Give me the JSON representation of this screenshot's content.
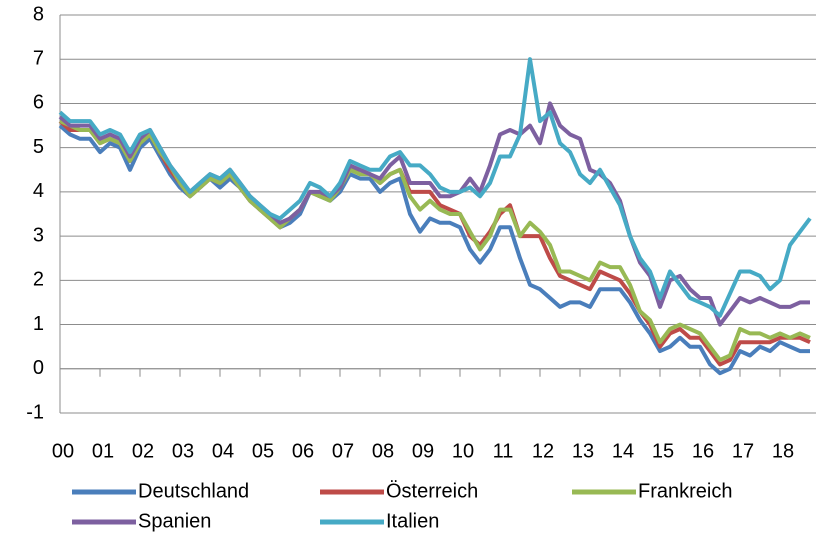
{
  "chart_data": {
    "type": "line",
    "x": [
      2000,
      2000.25,
      2000.5,
      2000.75,
      2001,
      2001.25,
      2001.5,
      2001.75,
      2002,
      2002.25,
      2002.5,
      2002.75,
      2003,
      2003.25,
      2003.5,
      2003.75,
      2004,
      2004.25,
      2004.5,
      2004.75,
      2005,
      2005.25,
      2005.5,
      2005.75,
      2006,
      2006.25,
      2006.5,
      2006.75,
      2007,
      2007.25,
      2007.5,
      2007.75,
      2008,
      2008.25,
      2008.5,
      2008.75,
      2009,
      2009.25,
      2009.5,
      2009.75,
      2010,
      2010.25,
      2010.5,
      2010.75,
      2011,
      2011.25,
      2011.5,
      2011.75,
      2012,
      2012.25,
      2012.5,
      2012.75,
      2013,
      2013.25,
      2013.5,
      2013.75,
      2014,
      2014.25,
      2014.5,
      2014.75,
      2015,
      2015.25,
      2015.5,
      2015.75,
      2016,
      2016.25,
      2016.5,
      2016.75,
      2017,
      2017.25,
      2017.5,
      2017.75,
      2018,
      2018.25,
      2018.5,
      2018.75
    ],
    "series": [
      {
        "name": "Deutschland",
        "color": "#4a7ebb",
        "values": [
          5.5,
          5.3,
          5.2,
          5.2,
          4.9,
          5.1,
          5.0,
          4.5,
          5.0,
          5.2,
          4.8,
          4.4,
          4.1,
          3.9,
          4.1,
          4.3,
          4.1,
          4.3,
          4.1,
          3.8,
          3.6,
          3.4,
          3.2,
          3.3,
          3.5,
          4.0,
          3.9,
          3.8,
          4.0,
          4.4,
          4.3,
          4.3,
          4.0,
          4.2,
          4.3,
          3.5,
          3.1,
          3.4,
          3.3,
          3.3,
          3.2,
          2.7,
          2.4,
          2.7,
          3.2,
          3.2,
          2.5,
          1.9,
          1.8,
          1.6,
          1.4,
          1.5,
          1.5,
          1.4,
          1.8,
          1.8,
          1.8,
          1.5,
          1.1,
          0.8,
          0.4,
          0.5,
          0.7,
          0.5,
          0.5,
          0.1,
          -0.1,
          0.0,
          0.4,
          0.3,
          0.5,
          0.4,
          0.6,
          0.5,
          0.4,
          0.4
        ]
      },
      {
        "name": "Österreich",
        "color": "#be4b48",
        "values": [
          5.6,
          5.4,
          5.4,
          5.4,
          5.1,
          5.2,
          5.1,
          4.7,
          5.1,
          5.3,
          4.9,
          4.5,
          4.2,
          3.9,
          4.1,
          4.3,
          4.2,
          4.4,
          4.1,
          3.8,
          3.6,
          3.4,
          3.2,
          3.4,
          3.6,
          4.0,
          3.9,
          3.9,
          4.1,
          4.5,
          4.5,
          4.4,
          4.2,
          4.4,
          4.5,
          4.0,
          4.0,
          4.0,
          3.7,
          3.6,
          3.5,
          3.0,
          2.8,
          3.1,
          3.5,
          3.7,
          3.0,
          3.0,
          3.0,
          2.5,
          2.1,
          2.0,
          1.9,
          1.8,
          2.2,
          2.1,
          2.0,
          1.7,
          1.3,
          1.0,
          0.5,
          0.8,
          0.9,
          0.7,
          0.7,
          0.4,
          0.1,
          0.2,
          0.6,
          0.6,
          0.6,
          0.6,
          0.7,
          0.7,
          0.7,
          0.6
        ]
      },
      {
        "name": "Frankreich",
        "color": "#98b954",
        "values": [
          5.6,
          5.5,
          5.4,
          5.4,
          5.1,
          5.2,
          5.1,
          4.7,
          5.1,
          5.3,
          4.9,
          4.6,
          4.2,
          3.9,
          4.1,
          4.3,
          4.2,
          4.4,
          4.1,
          3.8,
          3.6,
          3.4,
          3.2,
          3.4,
          3.6,
          4.0,
          3.9,
          3.8,
          4.1,
          4.5,
          4.4,
          4.4,
          4.2,
          4.4,
          4.5,
          3.9,
          3.6,
          3.8,
          3.6,
          3.5,
          3.5,
          3.1,
          2.7,
          3.0,
          3.6,
          3.6,
          3.0,
          3.3,
          3.1,
          2.8,
          2.2,
          2.2,
          2.1,
          2.0,
          2.4,
          2.3,
          2.3,
          1.9,
          1.3,
          1.1,
          0.6,
          0.9,
          1.0,
          0.9,
          0.8,
          0.5,
          0.2,
          0.3,
          0.9,
          0.8,
          0.8,
          0.7,
          0.8,
          0.7,
          0.8,
          0.7
        ]
      },
      {
        "name": "Spanien",
        "color": "#7d60a0",
        "values": [
          5.7,
          5.5,
          5.5,
          5.5,
          5.2,
          5.3,
          5.2,
          4.8,
          5.2,
          5.4,
          5.0,
          4.6,
          4.3,
          4.0,
          4.2,
          4.4,
          4.3,
          4.5,
          4.2,
          3.9,
          3.7,
          3.5,
          3.3,
          3.4,
          3.6,
          4.0,
          4.0,
          3.9,
          4.1,
          4.6,
          4.5,
          4.4,
          4.3,
          4.6,
          4.8,
          4.2,
          4.2,
          4.2,
          3.9,
          3.9,
          4.0,
          4.3,
          4.0,
          4.6,
          5.3,
          5.4,
          5.3,
          5.5,
          5.1,
          6.0,
          5.5,
          5.3,
          5.2,
          4.5,
          4.4,
          4.2,
          3.8,
          3.0,
          2.4,
          2.1,
          1.4,
          2.0,
          2.1,
          1.8,
          1.6,
          1.6,
          1.0,
          1.3,
          1.6,
          1.5,
          1.6,
          1.5,
          1.4,
          1.4,
          1.5,
          1.5
        ]
      },
      {
        "name": "Italien",
        "color": "#46aac5",
        "values": [
          5.8,
          5.6,
          5.6,
          5.6,
          5.3,
          5.4,
          5.3,
          4.9,
          5.3,
          5.4,
          5.0,
          4.6,
          4.3,
          4.0,
          4.2,
          4.4,
          4.3,
          4.5,
          4.2,
          3.9,
          3.7,
          3.5,
          3.4,
          3.6,
          3.8,
          4.2,
          4.1,
          3.9,
          4.2,
          4.7,
          4.6,
          4.5,
          4.5,
          4.8,
          4.9,
          4.6,
          4.6,
          4.4,
          4.1,
          4.0,
          4.0,
          4.1,
          3.9,
          4.2,
          4.8,
          4.8,
          5.3,
          7.0,
          5.6,
          5.8,
          5.1,
          4.9,
          4.4,
          4.2,
          4.5,
          4.1,
          3.7,
          3.0,
          2.5,
          2.2,
          1.6,
          2.2,
          1.9,
          1.6,
          1.5,
          1.4,
          1.2,
          1.7,
          2.2,
          2.2,
          2.1,
          1.8,
          2.0,
          2.8,
          3.1,
          3.4
        ]
      }
    ],
    "xlim": [
      2000,
      2018.9
    ],
    "ylim": [
      -1,
      8
    ],
    "yticks": [
      -1,
      0,
      1,
      2,
      3,
      4,
      5,
      6,
      7,
      8
    ],
    "xticks": [
      {
        "value": 2000,
        "label": "00"
      },
      {
        "value": 2001,
        "label": "01"
      },
      {
        "value": 2002,
        "label": "02"
      },
      {
        "value": 2003,
        "label": "03"
      },
      {
        "value": 2004,
        "label": "04"
      },
      {
        "value": 2005,
        "label": "05"
      },
      {
        "value": 2006,
        "label": "06"
      },
      {
        "value": 2007,
        "label": "07"
      },
      {
        "value": 2008,
        "label": "08"
      },
      {
        "value": 2009,
        "label": "09"
      },
      {
        "value": 2010,
        "label": "10"
      },
      {
        "value": 2011,
        "label": "11"
      },
      {
        "value": 2012,
        "label": "12"
      },
      {
        "value": 2013,
        "label": "13"
      },
      {
        "value": 2014,
        "label": "14"
      },
      {
        "value": 2015,
        "label": "15"
      },
      {
        "value": 2016,
        "label": "16"
      },
      {
        "value": 2017,
        "label": "17"
      },
      {
        "value": 2018,
        "label": "18"
      }
    ],
    "grid": true
  }
}
